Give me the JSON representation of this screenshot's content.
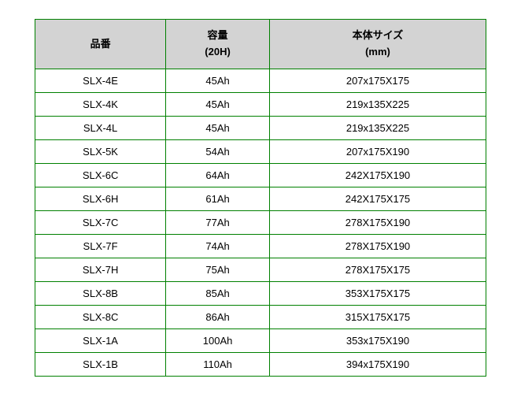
{
  "table": {
    "border_color": "#008000",
    "header_bg": "#d3d3d3",
    "row_bg": "#ffffff",
    "font_size": 13,
    "columns": [
      {
        "line1": "品番",
        "line2": "",
        "width_pct": 29
      },
      {
        "line1": "容量",
        "line2": "(20H)",
        "width_pct": 23
      },
      {
        "line1": "本体サイズ",
        "line2": "(mm)",
        "width_pct": 48
      }
    ],
    "rows": [
      [
        "SLX-4E",
        "45Ah",
        "207x175X175"
      ],
      [
        "SLX-4K",
        "45Ah",
        "219x135X225"
      ],
      [
        "SLX-4L",
        "45Ah",
        "219x135X225"
      ],
      [
        "SLX-5K",
        "54Ah",
        "207x175X190"
      ],
      [
        "SLX-6C",
        "64Ah",
        "242X175X190"
      ],
      [
        "SLX-6H",
        "61Ah",
        "242X175X175"
      ],
      [
        "SLX-7C",
        "77Ah",
        "278X175X190"
      ],
      [
        "SLX-7F",
        "74Ah",
        "278X175X190"
      ],
      [
        "SLX-7H",
        "75Ah",
        "278X175X175"
      ],
      [
        "SLX-8B",
        "85Ah",
        "353X175X175"
      ],
      [
        "SLX-8C",
        "86Ah",
        "315X175X175"
      ],
      [
        "SLX-1A",
        "100Ah",
        "353x175X190"
      ],
      [
        "SLX-1B",
        "110Ah",
        "394x175X190"
      ]
    ]
  }
}
